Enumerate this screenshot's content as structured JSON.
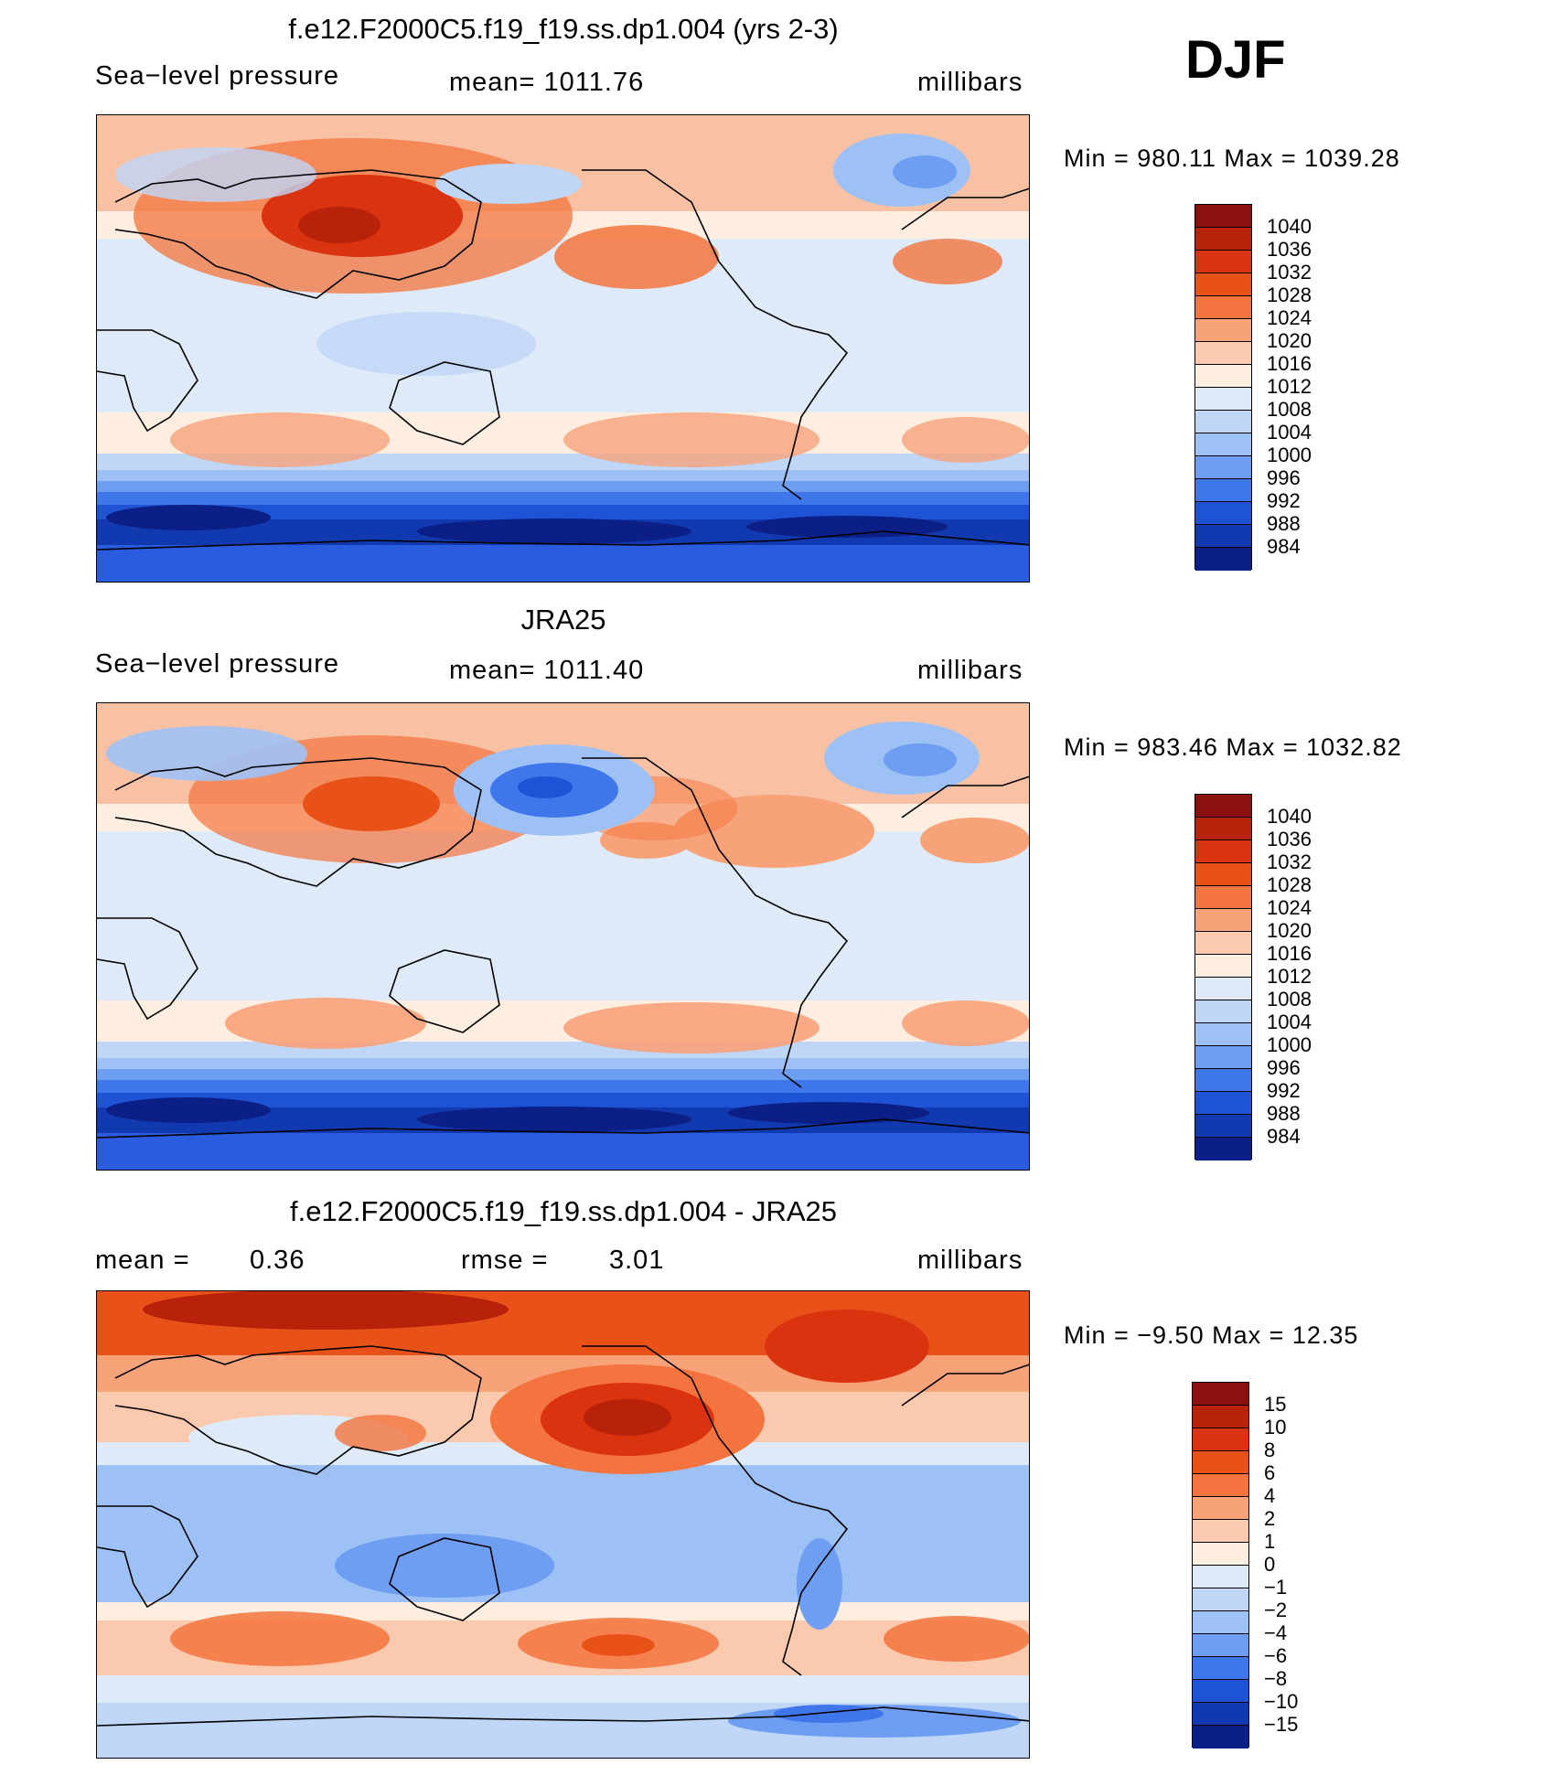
{
  "season": "DJF",
  "panels": [
    {
      "title": "f.e12.F2000C5.f19_f19.ss.dp1.004 (yrs 2-3)",
      "left_label": "Sea−level pressure",
      "center_label": "mean=  1011.76",
      "units": "millibars",
      "minmax": "Min  =  980.11  Max  =  1039.28",
      "levels": [
        "1040",
        "1036",
        "1032",
        "1028",
        "1024",
        "1020",
        "1016",
        "1012",
        "1008",
        "1004",
        "1000",
        "996",
        "992",
        "988",
        "984"
      ],
      "colors": [
        "#8c1010",
        "#b8220b",
        "#d9330f",
        "#e85218",
        "#f3743e",
        "#f8a27a",
        "#fbc9ad",
        "#fdeee0",
        "#dfeaf8",
        "#bfd6f7",
        "#9ec1f5",
        "#6e9ef2",
        "#3f76ea",
        "#1f53d6",
        "#123ab0",
        "#0c1f86"
      ]
    },
    {
      "title": "JRA25",
      "left_label": "Sea−level pressure",
      "center_label": "mean=  1011.40",
      "units": "millibars",
      "minmax": "Min  =  983.46  Max  =  1032.82",
      "levels": [
        "1040",
        "1036",
        "1032",
        "1028",
        "1024",
        "1020",
        "1016",
        "1012",
        "1008",
        "1004",
        "1000",
        "996",
        "992",
        "988",
        "984"
      ],
      "colors": [
        "#8c1010",
        "#b8220b",
        "#d9330f",
        "#e85218",
        "#f3743e",
        "#f8a27a",
        "#fbc9ad",
        "#fdeee0",
        "#dfeaf8",
        "#bfd6f7",
        "#9ec1f5",
        "#6e9ef2",
        "#3f76ea",
        "#1f53d6",
        "#123ab0",
        "#0c1f86"
      ]
    },
    {
      "title": "f.e12.F2000C5.f19_f19.ss.dp1.004 - JRA25",
      "left_label": "mean  =",
      "left_value": "0.36",
      "center_label": "rmse  =",
      "center_value": "3.01",
      "units": "millibars",
      "minmax": "Min  =   −9.50  Max  =    12.35",
      "levels": [
        "15",
        "10",
        "8",
        "6",
        "4",
        "2",
        "1",
        "0",
        "−1",
        "−2",
        "−4",
        "−6",
        "−8",
        "−10",
        "−15"
      ],
      "colors": [
        "#8c1010",
        "#b8220b",
        "#d9330f",
        "#e85218",
        "#f3743e",
        "#f8a27a",
        "#fbc9ad",
        "#fdeee0",
        "#dfeaf8",
        "#bfd6f7",
        "#9ec1f5",
        "#6e9ef2",
        "#3f76ea",
        "#1f53d6",
        "#123ab0",
        "#0c1f86"
      ]
    }
  ]
}
